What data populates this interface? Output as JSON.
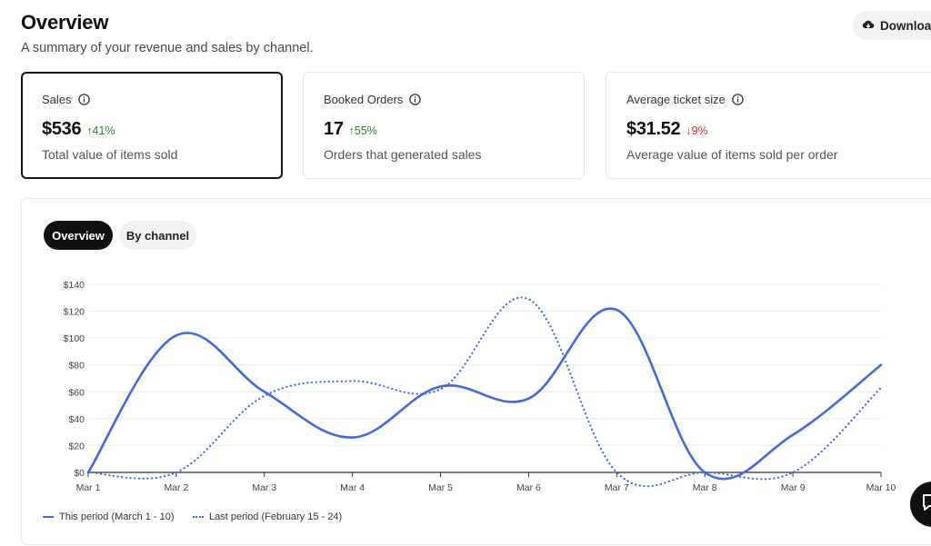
{
  "header": {
    "title": "Overview",
    "subtitle": "A summary of your revenue and sales by channel.",
    "download_label": "Download"
  },
  "cards": [
    {
      "label": "Sales",
      "value": "$536",
      "delta": "41%",
      "direction": "up",
      "description": "Total value of items sold"
    },
    {
      "label": "Booked Orders",
      "value": "17",
      "delta": "55%",
      "direction": "up",
      "description": "Orders that generated sales"
    },
    {
      "label": "Average ticket size",
      "value": "$31.52",
      "delta": "9%",
      "direction": "down",
      "description": "Average value of items sold per order"
    }
  ],
  "tabs": [
    {
      "label": "Overview",
      "active": true
    },
    {
      "label": "By channel",
      "active": false
    }
  ],
  "colors": {
    "series": "#4169e1",
    "up": "#2e7d32",
    "down": "#d32f2f",
    "active_tab": "#111111"
  },
  "chart_data": {
    "type": "line",
    "categories": [
      "Mar 1",
      "Mar 2",
      "Mar 3",
      "Mar 4",
      "Mar 5",
      "Mar 6",
      "Mar 7",
      "Mar 8",
      "Mar 9",
      "Mar 10"
    ],
    "yticks": [
      "$0",
      "$20",
      "$40",
      "$60",
      "$80",
      "$100",
      "$120",
      "$140"
    ],
    "ylim": [
      0,
      140
    ],
    "grid": true,
    "legend_position": "bottom-left",
    "series": [
      {
        "name": "This period (March 1 - 10)",
        "style": "solid",
        "values": [
          0,
          102,
          60,
          26,
          64,
          55,
          121,
          0,
          28,
          80
        ]
      },
      {
        "name": "Last period (February 15 - 24)",
        "style": "dotted",
        "values": [
          0,
          0,
          57,
          68,
          62,
          129,
          0,
          0,
          0,
          63
        ]
      }
    ]
  }
}
